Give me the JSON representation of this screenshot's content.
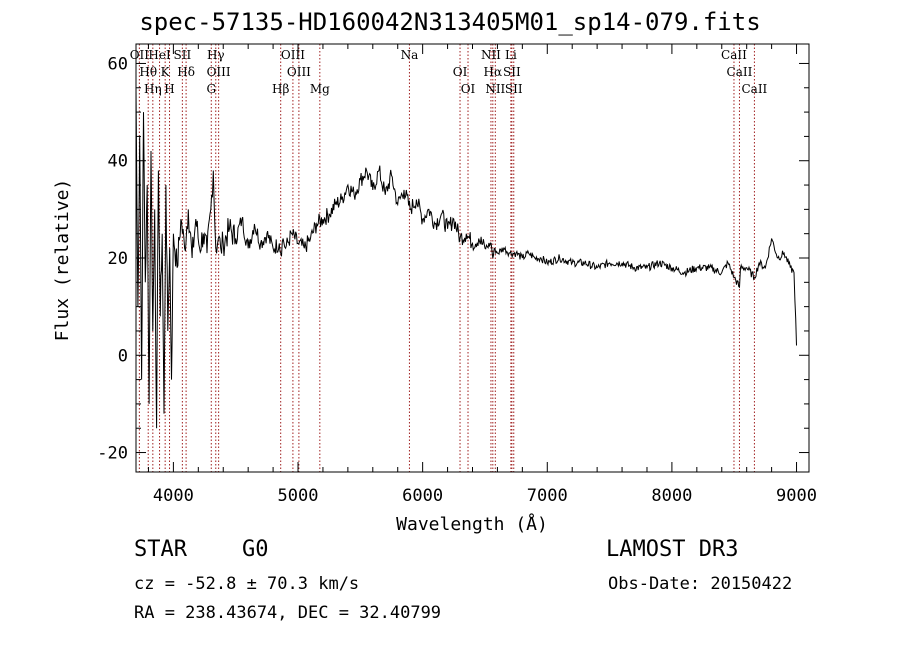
{
  "header": {
    "title": "spec-57135-HD160042N313405M01_sp14-079.fits"
  },
  "info": {
    "object_class": "STAR",
    "subclass": "G0",
    "survey": "LAMOST DR3",
    "cz": "cz = -52.8 ± 70.3 km/s",
    "obs_date": "Obs-Date: 20150422",
    "radec": "RA = 238.43674, DEC =  32.40799"
  },
  "chart_data": {
    "type": "line",
    "title": "spec-57135-HD160042N313405M01_sp14-079.fits",
    "xlabel": "Wavelength (Å)",
    "ylabel": "Flux (relative)",
    "xlim": [
      3700,
      9100
    ],
    "ylim": [
      -24,
      64
    ],
    "xticks": [
      4000,
      5000,
      6000,
      7000,
      8000,
      9000
    ],
    "yticks": [
      -20,
      0,
      20,
      40,
      60
    ],
    "grid": false,
    "series": [
      {
        "name": "flux",
        "color": "#000000",
        "x": [
          3700,
          3715,
          3730,
          3745,
          3760,
          3775,
          3790,
          3805,
          3820,
          3835,
          3850,
          3865,
          3880,
          3895,
          3910,
          3925,
          3940,
          3955,
          3970,
          3985,
          4000,
          4030,
          4060,
          4090,
          4120,
          4150,
          4180,
          4210,
          4240,
          4270,
          4300,
          4320,
          4340,
          4360,
          4380,
          4400,
          4450,
          4500,
          4550,
          4600,
          4650,
          4700,
          4750,
          4800,
          4850,
          4861,
          4880,
          4900,
          4950,
          5000,
          5050,
          5100,
          5150,
          5200,
          5250,
          5300,
          5350,
          5400,
          5450,
          5500,
          5550,
          5600,
          5650,
          5700,
          5750,
          5800,
          5850,
          5900,
          5950,
          6000,
          6050,
          6100,
          6150,
          6200,
          6250,
          6300,
          6350,
          6400,
          6450,
          6500,
          6550,
          6563,
          6580,
          6600,
          6650,
          6700,
          6750,
          6800,
          6850,
          6900,
          6950,
          7000,
          7100,
          7200,
          7300,
          7400,
          7500,
          7600,
          7700,
          7800,
          7900,
          8000,
          8100,
          8200,
          8300,
          8400,
          8450,
          8500,
          8542,
          8550,
          8600,
          8662,
          8700,
          8750,
          8800,
          8850,
          8900,
          8950,
          8980,
          9000
        ],
        "values": [
          55,
          10,
          45,
          -5,
          50,
          15,
          35,
          -10,
          42,
          5,
          30,
          -15,
          38,
          8,
          25,
          -12,
          35,
          5,
          22,
          -5,
          25,
          18,
          28,
          22,
          30,
          20,
          28,
          22,
          25,
          21,
          30,
          38,
          22,
          24,
          22,
          23,
          26,
          24,
          28,
          22,
          27,
          23,
          25,
          22,
          23,
          21,
          24,
          22,
          25,
          23,
          22,
          24,
          27,
          28,
          29,
          31,
          32,
          35,
          33,
          36,
          38,
          34,
          38,
          33,
          37,
          31,
          34,
          30,
          32,
          28,
          30,
          27,
          29,
          26,
          28,
          24,
          25,
          23,
          24,
          22,
          23,
          20,
          22,
          21,
          22,
          21,
          21,
          20,
          21,
          20,
          20,
          19,
          20,
          19,
          19,
          18,
          19,
          19,
          18,
          18,
          19,
          18,
          17,
          18,
          18,
          17,
          19,
          16,
          14,
          18,
          18,
          16,
          19,
          18,
          24,
          20,
          21,
          18,
          17,
          2
        ]
      }
    ],
    "lines": [
      {
        "wl": 3727,
        "labels": [
          "OII"
        ]
      },
      {
        "wl": 3798,
        "labels": [
          "Hθ"
        ]
      },
      {
        "wl": 3835,
        "labels": [
          "Hη"
        ]
      },
      {
        "wl": 3889,
        "labels": [
          "HeI"
        ]
      },
      {
        "wl": 3934,
        "labels": [
          "K"
        ]
      },
      {
        "wl": 3969,
        "labels": [
          "H"
        ]
      },
      {
        "wl": 4072,
        "labels": [
          "SII"
        ]
      },
      {
        "wl": 4102,
        "labels": [
          "Hδ"
        ]
      },
      {
        "wl": 4304,
        "labels": [
          "G"
        ]
      },
      {
        "wl": 4340,
        "labels": [
          "Hγ"
        ]
      },
      {
        "wl": 4363,
        "labels": [
          "OIII"
        ]
      },
      {
        "wl": 4861,
        "labels": [
          "Hβ"
        ]
      },
      {
        "wl": 4959,
        "labels": [
          "OIII"
        ]
      },
      {
        "wl": 5007,
        "labels": [
          "OIII"
        ]
      },
      {
        "wl": 5175,
        "labels": [
          "Mg"
        ]
      },
      {
        "wl": 5894,
        "labels": [
          "Na"
        ]
      },
      {
        "wl": 6300,
        "labels": [
          "OI"
        ]
      },
      {
        "wl": 6364,
        "labels": [
          "OI"
        ]
      },
      {
        "wl": 6548,
        "labels": [
          "NII"
        ]
      },
      {
        "wl": 6563,
        "labels": [
          "Hα"
        ]
      },
      {
        "wl": 6583,
        "labels": [
          "NII"
        ]
      },
      {
        "wl": 6708,
        "labels": [
          "Li"
        ]
      },
      {
        "wl": 6716,
        "labels": [
          "SII"
        ]
      },
      {
        "wl": 6731,
        "labels": [
          "SII"
        ]
      },
      {
        "wl": 8498,
        "labels": [
          "CaII"
        ]
      },
      {
        "wl": 8542,
        "labels": [
          "CaII"
        ]
      },
      {
        "wl": 8662,
        "labels": [
          "CaII"
        ]
      }
    ]
  }
}
